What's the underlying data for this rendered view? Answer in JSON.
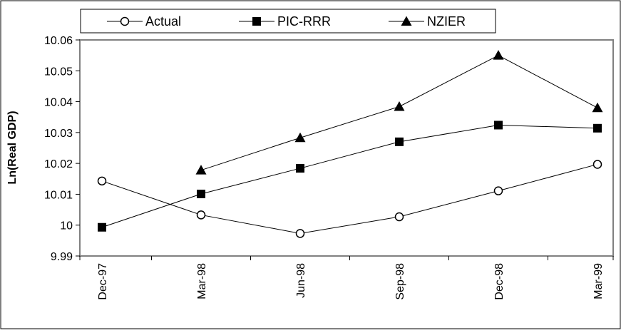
{
  "chart_data": {
    "type": "line",
    "categories": [
      "Dec-97",
      "Mar-98",
      "Jun-98",
      "Sep-98",
      "Dec-98",
      "Mar-99"
    ],
    "ylabel": "Ln(Real GDP)",
    "ylim": [
      9.99,
      10.06
    ],
    "yticks": [
      9.99,
      10,
      10.01,
      10.02,
      10.03,
      10.04,
      10.05,
      10.06
    ],
    "ytick_labels": [
      "9.99",
      "10",
      "10.01",
      "10.02",
      "10.03",
      "10.04",
      "10.05",
      "10.06"
    ],
    "grid": false,
    "legend_position": "top",
    "series": [
      {
        "name": "Actual",
        "marker": "circle-open",
        "values": [
          10.0143,
          10.0033,
          9.9973,
          10.0027,
          10.0111,
          10.0197
        ]
      },
      {
        "name": "PIC-RRR",
        "marker": "square",
        "values": [
          9.9993,
          10.0101,
          10.0184,
          10.027,
          10.0324,
          10.0314
        ]
      },
      {
        "name": "NZIER",
        "marker": "triangle",
        "values": [
          null,
          10.0178,
          10.0283,
          10.0384,
          10.055,
          10.038
        ]
      }
    ]
  }
}
